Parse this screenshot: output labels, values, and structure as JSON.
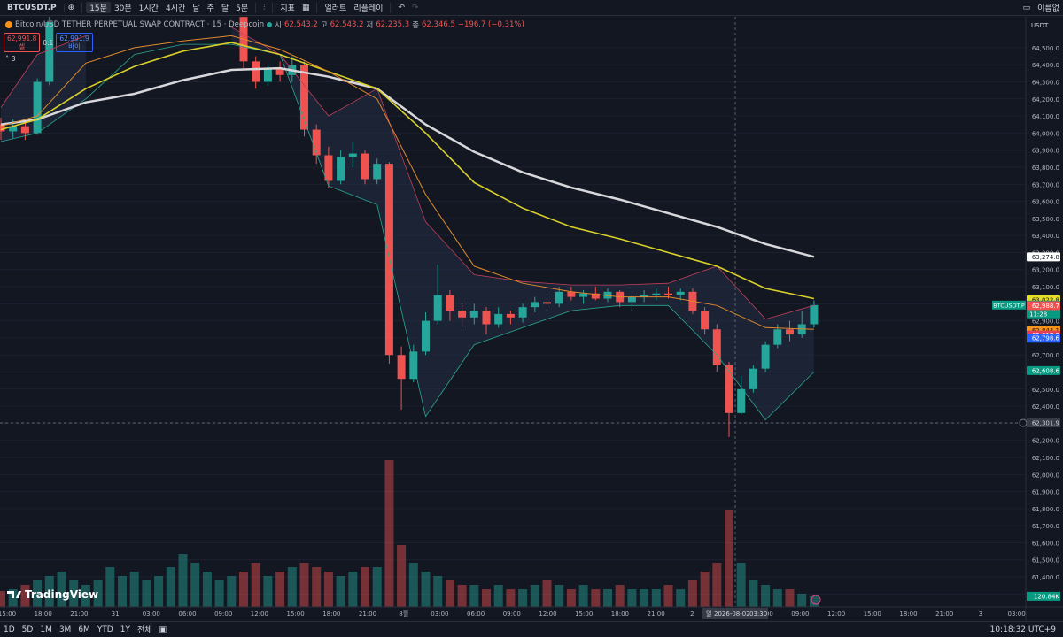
{
  "toolbar": {
    "symbol": "BTCUSDT.P",
    "intervals": [
      "15분",
      "30분",
      "1시간",
      "4시간",
      "날",
      "주",
      "달",
      "5분"
    ],
    "indicators": "지표",
    "alerts": "얼러트",
    "replay": "리플레이",
    "layout": "이름없"
  },
  "legend": {
    "title": "Bitcoin/USD TETHER PERPETUAL SWAP CONTRACT · 15 · Deepcoin",
    "open_label": "시",
    "open": "62,543.2",
    "high_label": "고",
    "high": "62,543.2",
    "low_label": "저",
    "low": "62,235.3",
    "close_label": "종",
    "close": "62,346.5",
    "change": "−196.7 (−0.31%)",
    "sell_price": "62,991.8",
    "sell": "셀",
    "spread": "0.1",
    "buy_price": "62,991.9",
    "buy": "바이",
    "indicator_count": "3"
  },
  "chart_data": {
    "type": "candlestick",
    "currency": "USDT",
    "ylim": [
      61224,
      64681
    ],
    "yticks": [
      {
        "value": 64500,
        "label": "64,500.0"
      },
      {
        "value": 64400,
        "label": "64,400.0"
      },
      {
        "value": 64300,
        "label": "64,300.0"
      },
      {
        "value": 64200,
        "label": "64,200.0"
      },
      {
        "value": 64100,
        "label": "64,100.0"
      },
      {
        "value": 64000,
        "label": "64,000.0"
      },
      {
        "value": 63900,
        "label": "63,900.0"
      },
      {
        "value": 63800,
        "label": "63,800.0"
      },
      {
        "value": 63700,
        "label": "63,700.0"
      },
      {
        "value": 63600,
        "label": "63,600.0"
      },
      {
        "value": 63500,
        "label": "63,500.0"
      },
      {
        "value": 63400,
        "label": "63,400.0"
      },
      {
        "value": 63300,
        "label": "63,300.0"
      },
      {
        "value": 63200,
        "label": "63,200.0"
      },
      {
        "value": 63100,
        "label": "63,100.0"
      },
      {
        "value": 63000,
        "label": "63,000.0"
      },
      {
        "value": 62900,
        "label": "62,900.0"
      },
      {
        "value": 62800,
        "label": "62,800.0"
      },
      {
        "value": 62700,
        "label": "62,700.0"
      },
      {
        "value": 62600,
        "label": "62,600.0"
      },
      {
        "value": 62500,
        "label": "62,500.0"
      },
      {
        "value": 62400,
        "label": "62,400.0"
      },
      {
        "value": 62300,
        "label": "62,300.0"
      },
      {
        "value": 62200,
        "label": "62,200.0"
      },
      {
        "value": 62100,
        "label": "62,100.0"
      },
      {
        "value": 62000,
        "label": "62,000.0"
      },
      {
        "value": 61900,
        "label": "61,900.0"
      },
      {
        "value": 61800,
        "label": "61,800.0"
      },
      {
        "value": 61700,
        "label": "61,700.0"
      },
      {
        "value": 61600,
        "label": "61,600.0"
      },
      {
        "value": 61500,
        "label": "61,500.0"
      },
      {
        "value": 61400,
        "label": "61,400.0"
      },
      {
        "value": 61300,
        "label": "61,300.0"
      }
    ],
    "grid": true,
    "up_color": "#26a69a",
    "down_color": "#ef5350",
    "candles": [
      [
        64050,
        64090,
        63960,
        64010
      ],
      [
        64010,
        64080,
        63970,
        64040
      ],
      [
        64040,
        64070,
        63960,
        64000
      ],
      [
        64000,
        64320,
        63990,
        64300
      ],
      [
        64300,
        64690,
        64280,
        64650
      ],
      null,
      null,
      null,
      null,
      null,
      null,
      null,
      null,
      null,
      null,
      null,
      null,
      null,
      null,
      null,
      [
        64680,
        64690,
        64380,
        64420
      ],
      [
        64420,
        64450,
        64260,
        64300
      ],
      [
        64300,
        64400,
        64280,
        64380
      ],
      [
        64380,
        64420,
        64300,
        64340
      ],
      [
        64340,
        64450,
        64300,
        64400
      ],
      [
        64400,
        64420,
        63980,
        64020
      ],
      [
        64020,
        64050,
        63820,
        63870
      ],
      [
        63870,
        63920,
        63680,
        63720
      ],
      [
        63720,
        63900,
        63700,
        63860
      ],
      [
        63860,
        63950,
        63800,
        63880
      ],
      [
        63880,
        63900,
        63700,
        63730
      ],
      [
        63730,
        63850,
        63700,
        63820
      ],
      [
        63820,
        63830,
        62650,
        62700
      ],
      [
        62700,
        62750,
        62380,
        62560
      ],
      [
        62560,
        62760,
        62540,
        62720
      ],
      [
        62720,
        62950,
        62700,
        62900
      ],
      [
        62900,
        63230,
        62880,
        63050
      ],
      [
        63050,
        63080,
        62900,
        62960
      ],
      [
        62960,
        63000,
        62860,
        62920
      ],
      [
        62920,
        63000,
        62880,
        62960
      ],
      [
        62960,
        62980,
        62820,
        62880
      ],
      [
        62880,
        62980,
        62860,
        62940
      ],
      [
        62940,
        62960,
        62880,
        62920
      ],
      [
        62920,
        63000,
        62890,
        62980
      ],
      [
        62980,
        63040,
        62950,
        63010
      ],
      [
        63010,
        63060,
        62960,
        63000
      ],
      [
        63000,
        63100,
        62980,
        63070
      ],
      [
        63070,
        63100,
        63020,
        63040
      ],
      [
        63040,
        63080,
        63000,
        63060
      ],
      [
        63060,
        63100,
        63020,
        63030
      ],
      [
        63030,
        63090,
        63010,
        63070
      ],
      [
        63070,
        63080,
        62980,
        63010
      ],
      [
        63010,
        63060,
        62960,
        63040
      ],
      [
        63040,
        63080,
        63010,
        63050
      ],
      [
        63050,
        63090,
        63020,
        63060
      ],
      [
        63060,
        63100,
        63030,
        63050
      ],
      [
        63050,
        63090,
        63020,
        63070
      ],
      [
        63070,
        63090,
        62940,
        62960
      ],
      [
        62960,
        62980,
        62820,
        62850
      ],
      [
        62850,
        62880,
        62600,
        62640
      ],
      [
        62640,
        62660,
        62220,
        62360
      ],
      [
        62360,
        62580,
        62350,
        62500
      ],
      [
        62500,
        62640,
        62480,
        62620
      ],
      [
        62620,
        62780,
        62600,
        62760
      ],
      [
        62760,
        62880,
        62740,
        62850
      ],
      [
        62850,
        62900,
        62780,
        62820
      ],
      [
        62820,
        62960,
        62800,
        62880
      ],
      [
        62880,
        63020,
        62860,
        62992.4
      ]
    ],
    "volume": [
      180,
      200,
      250,
      300,
      350,
      400,
      300,
      250,
      300,
      450,
      350,
      400,
      300,
      350,
      450,
      600,
      500,
      400,
      300,
      350,
      400,
      500,
      350,
      400,
      450,
      500,
      450,
      400,
      350,
      400,
      450,
      450,
      1660,
      700,
      500,
      400,
      350,
      300,
      250,
      250,
      200,
      250,
      200,
      200,
      250,
      300,
      250,
      200,
      250,
      200,
      200,
      250,
      200,
      200,
      200,
      250,
      200,
      300,
      400,
      500,
      1100,
      500,
      300,
      250,
      200,
      200,
      150,
      120.84
    ],
    "volume_ylim": [
      0,
      3000
    ],
    "volume_tag": {
      "value": 120.84,
      "label": "120.84K"
    },
    "line_x": [
      0,
      3,
      7,
      11,
      15,
      19,
      23,
      27,
      31,
      35,
      39,
      43,
      47,
      51,
      55,
      59,
      63,
      67
    ],
    "lines": [
      {
        "color": "#d8d8dc",
        "width": 2.5,
        "values": [
          64050,
          64080,
          64180,
          64230,
          64310,
          64370,
          64380,
          64330,
          64260,
          64050,
          63890,
          63770,
          63680,
          63610,
          63530,
          63450,
          63350,
          63275
        ]
      },
      {
        "color": "#d9d12a",
        "width": 1.6,
        "values": [
          64020,
          64080,
          64260,
          64390,
          64480,
          64530,
          64460,
          64360,
          64260,
          64000,
          63710,
          63560,
          63450,
          63380,
          63300,
          63220,
          63090,
          63030
        ]
      },
      {
        "color": "#e08a2c",
        "width": 1,
        "values": [
          64040,
          64100,
          64410,
          64500,
          64540,
          64570,
          64490,
          64360,
          64200,
          63640,
          63220,
          63120,
          63070,
          63040,
          63040,
          62990,
          62860,
          62850
        ]
      }
    ],
    "bands": {
      "upper_color": "#c2405a",
      "lower_color": "#2aa88e",
      "fill": "#2a3a5a",
      "upper": [
        64150,
        64460,
        64570,
        null,
        null,
        64620,
        64460,
        64100,
        64260,
        63480,
        63170,
        63130,
        63110,
        63110,
        63120,
        63220,
        62910,
        62990
      ],
      "lower": [
        63950,
        64000,
        64200,
        64460,
        64520,
        64520,
        64460,
        63690,
        63580,
        62340,
        62760,
        62860,
        62960,
        62990,
        62990,
        62700,
        62320,
        62600
      ]
    },
    "price_tags": [
      {
        "value": 63274.8,
        "label": "63,274.8",
        "color": "#ffffff",
        "text_color": "#131722"
      },
      {
        "value": 63022.8,
        "label": "63,022.8",
        "color": "#e5df2a",
        "text_color": "#131722"
      },
      {
        "value": 62992.4,
        "label": "62,992.4",
        "sub": "11:28",
        "color": "#089981",
        "text_color": "#ffffff",
        "symbol": "BTCUSDT.P"
      },
      {
        "value": 62988.7,
        "label": "62,988.7",
        "color": "#ef5350",
        "text_color": "#ffffff"
      },
      {
        "value": 62844.1,
        "label": "62,844.1",
        "color": "#f7931a",
        "text_color": "#131722"
      },
      {
        "value": 62817.2,
        "label": "62,817.2",
        "color": "#e0405a",
        "text_color": "#ffffff"
      },
      {
        "value": 62798.6,
        "label": "62,798.6",
        "color": "#2962ff",
        "text_color": "#ffffff"
      },
      {
        "value": 62608.6,
        "label": "62,608.6",
        "color": "#089981",
        "text_color": "#ffffff"
      }
    ],
    "crosshair": {
      "y": {
        "value": 62301.9,
        "label": "62,301.9"
      },
      "day": "일",
      "date": "2026-08-02",
      "time": "03:30"
    },
    "time_labels": [
      "15:00",
      "18:00",
      "21:00",
      "31",
      "03:00",
      "06:00",
      "09:00",
      "12:00",
      "15:00",
      "18:00",
      "21:00",
      "8월",
      "03:00",
      "06:00",
      "09:00",
      "12:00",
      "15:00",
      "18:00",
      "21:00",
      "2",
      null,
      "06:00",
      "09:00",
      "12:00",
      "15:00",
      "18:00",
      "21:00",
      "3",
      "03:00"
    ]
  },
  "brand": "TradingView",
  "bottom_bar": {
    "ranges": [
      "1D",
      "5D",
      "1M",
      "3M",
      "6M",
      "YTD",
      "1Y",
      "전체"
    ],
    "clock": "10:18:32 UTC+9"
  }
}
